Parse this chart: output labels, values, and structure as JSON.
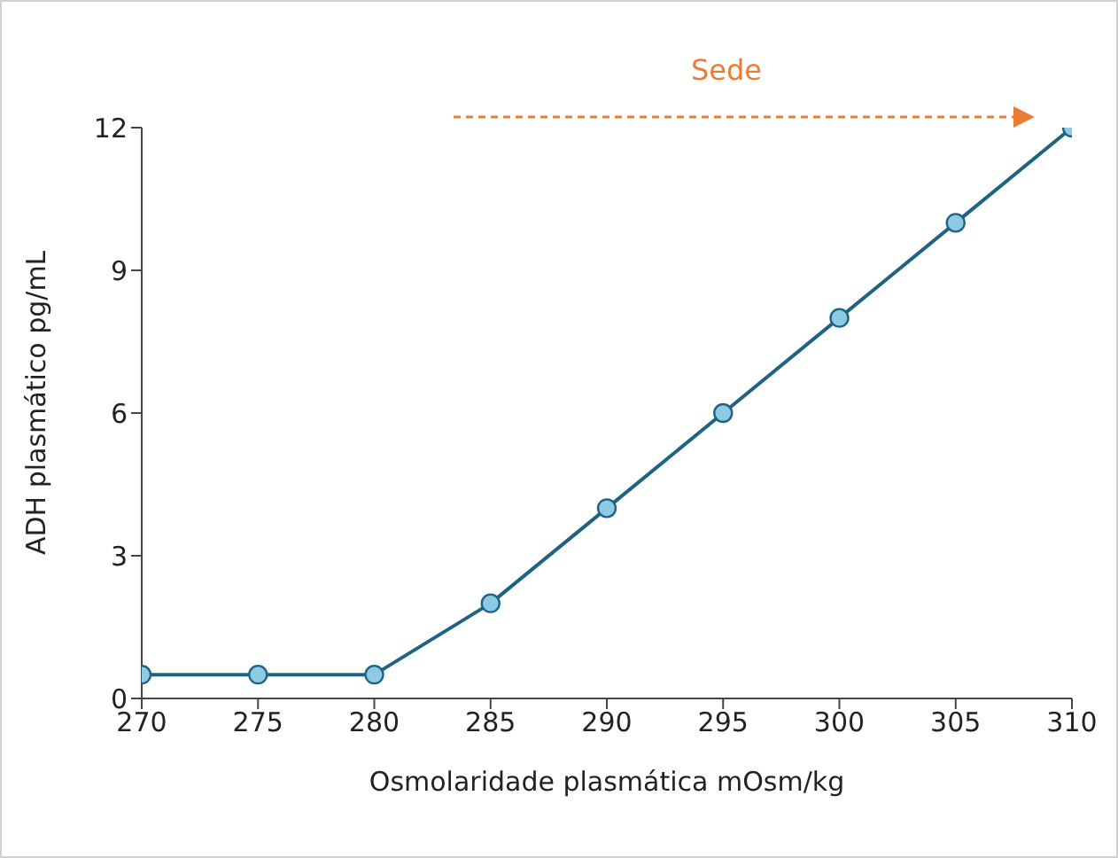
{
  "chart_data": {
    "type": "line",
    "xlabel": "Osmolaridade plasmática mOsm/kg",
    "ylabel": "ADH plasmático pg/mL",
    "x": [
      270,
      275,
      280,
      285,
      290,
      295,
      300,
      305,
      310
    ],
    "series": [
      {
        "color": "#1f6384",
        "values": [
          0.5,
          0.5,
          0.5,
          2,
          4,
          6,
          8,
          10,
          12
        ]
      }
    ],
    "xlim": [
      270,
      310
    ],
    "xticks": [
      270,
      275,
      280,
      285,
      290,
      295,
      300,
      305,
      310
    ],
    "ylim": [
      0,
      12
    ],
    "yticks": [
      0,
      3,
      6,
      9,
      12
    ],
    "marker": "circle",
    "line_style": "solid",
    "grid": false,
    "legend": false,
    "annotations": [
      "Sede"
    ]
  }
}
